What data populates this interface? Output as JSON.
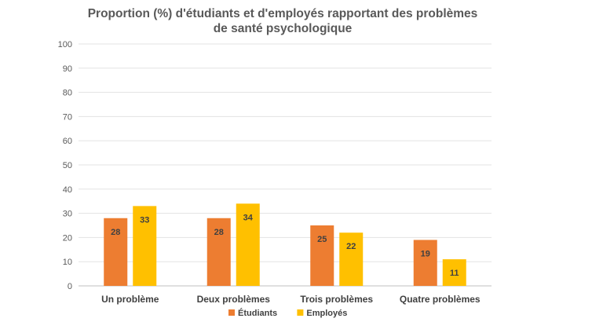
{
  "chart_data": {
    "type": "bar",
    "title_lines": [
      "Proportion (%) d'étudiants et d'employés rapportant des problèmes",
      "de santé psychologique"
    ],
    "categories": [
      "Un problème",
      "Deux problèmes",
      "Trois problèmes",
      "Quatre problèmes"
    ],
    "series": [
      {
        "name": "Étudiants",
        "values": [
          28,
          28,
          25,
          19
        ],
        "labels": [
          "28",
          "28",
          "25",
          "19"
        ],
        "color": "#ED7D31"
      },
      {
        "name": "Employés",
        "values": [
          33,
          34,
          22,
          11
        ],
        "labels": [
          "33",
          "34",
          "22",
          "11"
        ],
        "color": "#FFC000"
      }
    ],
    "ylim": [
      0,
      100
    ],
    "yticks": [
      0,
      10,
      20,
      30,
      40,
      50,
      60,
      70,
      80,
      90,
      100
    ],
    "grid": true,
    "legend_position": "bottom",
    "xlabel": "",
    "ylabel": ""
  }
}
